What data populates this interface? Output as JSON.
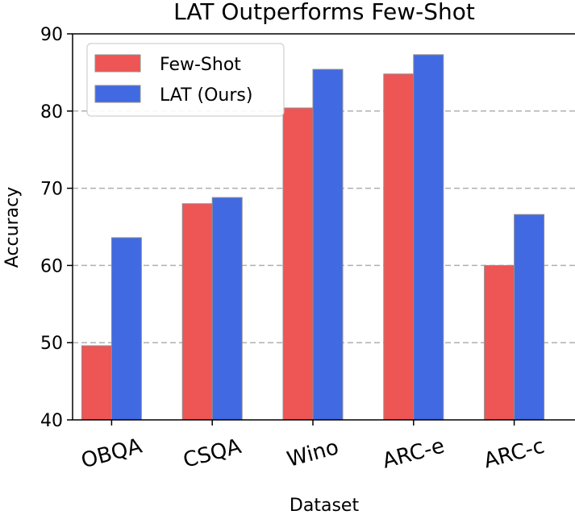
{
  "chart_data": {
    "type": "bar",
    "title": "LAT Outperforms Few-Shot",
    "xlabel": "Dataset",
    "ylabel": "Accuracy",
    "categories": [
      "OBQA",
      "CSQA",
      "Wino",
      "ARC-e",
      "ARC-c"
    ],
    "series": [
      {
        "name": "Few-Shot",
        "color": "#ee5555",
        "values": [
          49.6,
          68.0,
          80.4,
          84.8,
          60.0
        ]
      },
      {
        "name": "LAT (Ours)",
        "color": "#4169e1",
        "values": [
          63.6,
          68.8,
          85.4,
          87.3,
          66.6
        ]
      }
    ],
    "ylim": [
      40,
      90
    ],
    "yticks": [
      40,
      50,
      60,
      70,
      80,
      90
    ],
    "grid": "y-dashed",
    "legend_position": "top-left",
    "xtick_rotation_deg": -15
  }
}
